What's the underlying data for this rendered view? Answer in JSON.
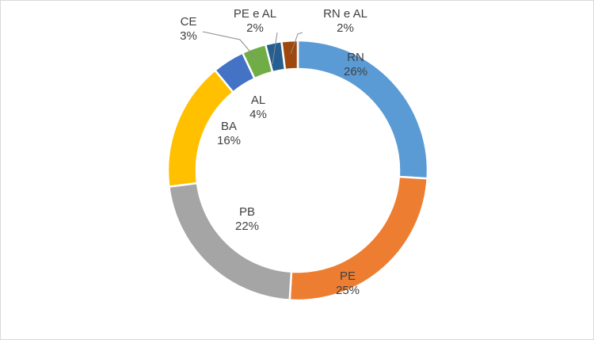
{
  "chart_data": {
    "type": "pie",
    "variant": "donut",
    "title": "",
    "start_category": "RN",
    "direction": "clockwise",
    "slices": [
      {
        "label": "RN",
        "percent_label": "26%",
        "value": 26,
        "color": "#5b9bd5"
      },
      {
        "label": "PE",
        "percent_label": "25%",
        "value": 25,
        "color": "#ed7d31"
      },
      {
        "label": "PB",
        "percent_label": "22%",
        "value": 22,
        "color": "#a5a5a5"
      },
      {
        "label": "BA",
        "percent_label": "16%",
        "value": 16,
        "color": "#ffc000"
      },
      {
        "label": "AL",
        "percent_label": "4%",
        "value": 4,
        "color": "#4472c4"
      },
      {
        "label": "CE",
        "percent_label": "3%",
        "value": 3,
        "color": "#70ad47"
      },
      {
        "label": "PE e AL",
        "percent_label": "2%",
        "value": 2,
        "color": "#255e91"
      },
      {
        "label": "RN e AL",
        "percent_label": "2%",
        "value": 2,
        "color": "#9e480e"
      }
    ]
  }
}
